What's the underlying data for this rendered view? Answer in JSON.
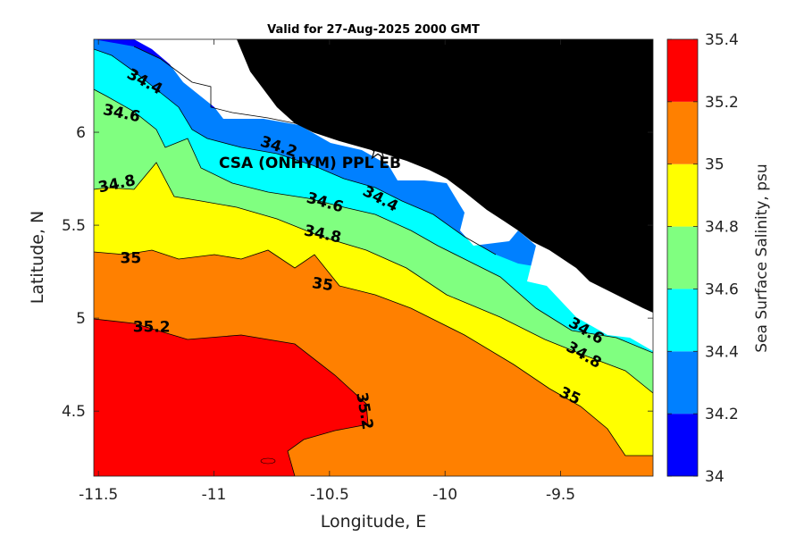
{
  "chart_data": {
    "type": "heatmap",
    "title": "Valid for 27-Aug-2025 2000 GMT",
    "xlabel": "Longitude, E",
    "ylabel": "Latitude, N",
    "xlim": [
      -11.52,
      -9.1
    ],
    "ylim": [
      4.15,
      6.5
    ],
    "x_ticks": [
      -11.5,
      -11,
      -10.5,
      -10,
      -9.5
    ],
    "x_tick_labels": [
      "-11.5",
      "-11",
      "-10.5",
      "-10",
      "-9.5"
    ],
    "y_ticks": [
      4.5,
      5,
      5.5,
      6
    ],
    "y_tick_labels": [
      "4.5",
      "5",
      "5.5",
      "6"
    ],
    "colorbar": {
      "label": "Sea Surface Salinity, psu",
      "min": 34,
      "max": 35.4,
      "tick_values": [
        34,
        34.2,
        34.4,
        34.6,
        34.8,
        35,
        35.2,
        35.4
      ],
      "tick_labels": [
        "34",
        "34.2",
        "34.4",
        "34.6",
        "34.8",
        "35",
        "35.2",
        "35.4"
      ],
      "colors": [
        "#0000ff",
        "#0080ff",
        "#00ffff",
        "#80ff80",
        "#ffff00",
        "#ff8000",
        "#ff0000"
      ]
    },
    "land_color": "#000000",
    "contour_labels": [
      {
        "text": "34.4",
        "lon": -11.3,
        "lat": 6.27,
        "angle": 28
      },
      {
        "text": "34.6",
        "lon": -11.4,
        "lat": 6.1,
        "angle": 12
      },
      {
        "text": "34.2",
        "lon": -10.72,
        "lat": 5.92,
        "angle": 18
      },
      {
        "text": "34.8",
        "lon": -11.42,
        "lat": 5.72,
        "angle": -12
      },
      {
        "text": "34.6",
        "lon": -10.52,
        "lat": 5.62,
        "angle": 16
      },
      {
        "text": "34.4",
        "lon": -10.28,
        "lat": 5.64,
        "angle": 28
      },
      {
        "text": "34.8",
        "lon": -10.53,
        "lat": 5.45,
        "angle": 12
      },
      {
        "text": "35",
        "lon": -11.36,
        "lat": 5.32,
        "angle": 0
      },
      {
        "text": "35",
        "lon": -10.53,
        "lat": 5.18,
        "angle": 8
      },
      {
        "text": "35.2",
        "lon": -11.27,
        "lat": 4.95,
        "angle": 0
      },
      {
        "text": "34.6",
        "lon": -9.39,
        "lat": 4.93,
        "angle": 30
      },
      {
        "text": "34.8",
        "lon": -9.4,
        "lat": 4.8,
        "angle": 30
      },
      {
        "text": "35",
        "lon": -9.46,
        "lat": 4.58,
        "angle": 25
      },
      {
        "text": "35.2",
        "lon": -10.35,
        "lat": 4.5,
        "angle": 80
      }
    ],
    "site": {
      "name": "CSA (ONHYM) PPL EB",
      "lon": -10.3,
      "lat": 5.89,
      "marker": "star"
    }
  }
}
